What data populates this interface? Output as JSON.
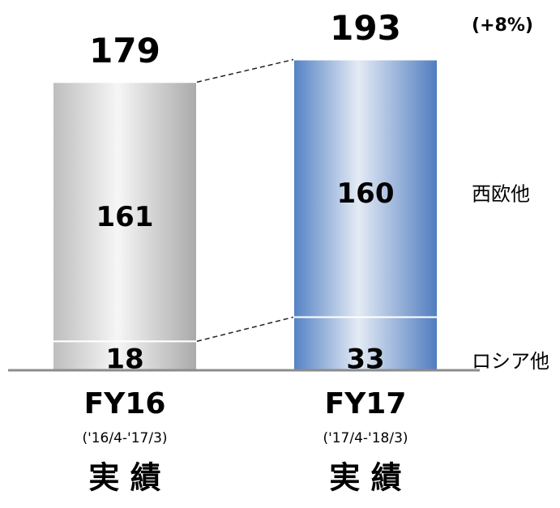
{
  "chart_data": {
    "type": "stacked_bar",
    "categories": [
      "FY16",
      "FY17"
    ],
    "periods": [
      "('16/4-'17/3)",
      "('17/4-'18/3)"
    ],
    "category_notes": [
      "実 績",
      "実 績"
    ],
    "series": [
      {
        "name": "ロシア他",
        "colors": [
          "#bdbdbd",
          "#5482c4"
        ],
        "values": [
          18,
          33
        ]
      },
      {
        "name": "西欧他",
        "colors": [
          "#bdbdbd",
          "#5482c4"
        ],
        "values": [
          161,
          160
        ]
      }
    ],
    "totals": [
      179,
      193
    ],
    "annotation": "(+8%)",
    "ylim": [
      0,
      230
    ]
  }
}
